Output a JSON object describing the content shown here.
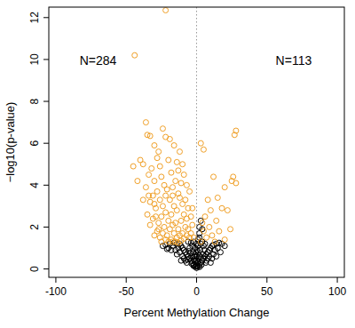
{
  "chart_data": {
    "type": "scatter",
    "x_label": "Percent Methylation Change",
    "y_label": "−log10(p-value)",
    "xlim": [
      -105,
      105
    ],
    "ylim": [
      -0.4,
      12.5
    ],
    "xticks": [
      -100,
      -50,
      0,
      50,
      100
    ],
    "yticks": [
      0,
      2,
      4,
      6,
      8,
      10,
      12
    ],
    "grid": false,
    "reference_lines": [
      {
        "x": 0,
        "line_style": "dotted",
        "color": "#999999"
      }
    ],
    "annotations": [
      {
        "text": "N=284",
        "x": -70,
        "y": 9.9
      },
      {
        "text": "N=113",
        "x": 69,
        "y": 9.9
      }
    ],
    "series": [
      {
        "color": "#000000",
        "marker": "circle-open",
        "x": [
          0,
          1,
          -1,
          2,
          -2,
          3,
          -3,
          0.5,
          -0.5,
          4,
          -4,
          5,
          -5,
          6,
          -6,
          7,
          -7,
          8,
          -8,
          9,
          -9,
          10,
          -10,
          11,
          -11,
          12,
          -12,
          14,
          -14,
          16,
          -16,
          18,
          -19,
          -22,
          20,
          1.5,
          -1.5,
          2.5,
          -2.5,
          3,
          -3,
          4,
          -4,
          2,
          1,
          -1,
          3,
          2,
          4,
          5,
          -5,
          6,
          -6,
          7,
          -7,
          8,
          -8,
          9,
          -9,
          10,
          -10,
          12,
          -12,
          13,
          -13,
          15,
          -15,
          17,
          -17,
          -20,
          0,
          0,
          0.3,
          -0.3,
          1.2,
          -1.2,
          2.2,
          -2.2,
          3.5,
          -3.5,
          4.5,
          -4.5,
          5.5,
          -5.5,
          6.5,
          -6.5,
          1,
          -1,
          0.5,
          -0.5,
          2,
          -2,
          3,
          -3,
          -18,
          -21,
          -24,
          11,
          -11,
          14,
          -14,
          1,
          -2,
          0,
          2
        ],
        "values": [
          0.05,
          0.1,
          0.1,
          0.2,
          0.2,
          0.3,
          0.3,
          0.3,
          0.25,
          0.4,
          0.4,
          0.5,
          0.5,
          0.6,
          0.6,
          0.7,
          0.7,
          0.8,
          0.8,
          0.9,
          0.9,
          1.0,
          1.0,
          1.1,
          1.1,
          1.15,
          1.2,
          1.2,
          1.2,
          1.25,
          1.25,
          1.2,
          1.2,
          1.15,
          1.1,
          0.5,
          0.6,
          0.9,
          0.8,
          1.2,
          1.1,
          1.3,
          1.25,
          1.5,
          0.8,
          0.7,
          2.3,
          2.0,
          1.9,
          1.1,
          1.0,
          1.2,
          1.3,
          0.4,
          0.3,
          0.5,
          0.4,
          0.6,
          0.5,
          0.3,
          0.6,
          0.7,
          0.8,
          0.9,
          1.0,
          1.0,
          0.9,
          0.8,
          1.1,
          1.0,
          0.4,
          0.6,
          0.15,
          0.12,
          0.35,
          0.4,
          0.1,
          0.15,
          0.2,
          0.25,
          0.7,
          0.75,
          0.9,
          0.85,
          0.3,
          0.45,
          1.1,
          1.0,
          0.9,
          0.8,
          0.65,
          0.45,
          0.55,
          0.6,
          0.9,
          0.95,
          1.1,
          0.5,
          0.4,
          0.6,
          0.7,
          1.4,
          1.3,
          1.2,
          1.7
        ]
      },
      {
        "color": "#f0a028",
        "marker": "circle-open",
        "x": [
          -22,
          -44,
          -36,
          -35,
          -33,
          -24,
          -22,
          -30,
          -27,
          -28,
          -40,
          -45,
          -38,
          -32,
          -26,
          -20,
          -18,
          -15,
          -34,
          -42,
          -30,
          -25,
          -23,
          -21,
          -17,
          -13,
          -28,
          -36,
          -31,
          -26,
          -19,
          -16,
          -12,
          -10,
          -24,
          -33,
          -29,
          -22,
          -18,
          -14,
          -9,
          -7,
          -11,
          -15,
          -20,
          -25,
          -27,
          -31,
          -35,
          -23,
          -19,
          -17,
          -13,
          -8,
          -6,
          -10,
          -12,
          -14,
          -16,
          -21,
          -24,
          -28,
          -26,
          -18,
          -20,
          -15,
          -11,
          -9,
          -7,
          -5,
          -4,
          -3,
          -6,
          -8,
          -5,
          -11,
          -9,
          -14,
          -12,
          -16,
          -19,
          -10,
          -13,
          -7,
          -17,
          -22,
          -30,
          -34,
          -38,
          -29,
          -33,
          -27,
          -22,
          -13,
          -17,
          -25,
          -30,
          -4,
          -3,
          -2,
          28,
          27,
          3,
          5,
          26,
          28,
          25,
          12,
          20,
          15,
          8,
          10,
          18,
          22,
          6,
          14,
          4,
          9,
          16,
          11,
          7,
          20,
          13,
          5,
          24,
          3
        ],
        "values": [
          12.35,
          10.2,
          7.0,
          6.4,
          6.35,
          6.7,
          6.3,
          5.9,
          5.6,
          5.3,
          5.2,
          4.9,
          5.0,
          4.8,
          4.9,
          5.2,
          4.6,
          4.2,
          4.5,
          4.2,
          4.2,
          4.4,
          4.0,
          3.8,
          3.9,
          3.6,
          3.7,
          3.9,
          3.5,
          3.3,
          3.3,
          3.0,
          3.4,
          3.1,
          3.0,
          3.2,
          2.9,
          2.7,
          2.6,
          2.8,
          2.6,
          2.4,
          2.3,
          2.2,
          2.3,
          2.5,
          2.2,
          2.4,
          2.6,
          2.0,
          1.9,
          2.1,
          1.9,
          2.0,
          1.9,
          1.7,
          1.6,
          1.5,
          1.7,
          1.6,
          1.7,
          1.8,
          1.5,
          1.4,
          1.3,
          1.3,
          1.35,
          1.45,
          1.6,
          1.5,
          1.7,
          2.1,
          2.9,
          3.3,
          3.7,
          4.1,
          4.5,
          5.1,
          5.6,
          5.9,
          6.2,
          5.0,
          4.7,
          4.0,
          3.5,
          3.5,
          3.1,
          3.5,
          3.3,
          2.5,
          2.1,
          1.9,
          1.4,
          1.25,
          1.3,
          1.3,
          1.6,
          2.5,
          2.9,
          1.5,
          6.6,
          6.4,
          6.0,
          5.7,
          4.4,
          4.1,
          4.2,
          4.4,
          3.9,
          3.4,
          3.3,
          2.8,
          2.9,
          2.8,
          2.5,
          2.3,
          2.2,
          2.0,
          1.8,
          1.6,
          1.5,
          1.4,
          1.3,
          1.8,
          1.9,
          1.3
        ]
      }
    ]
  }
}
